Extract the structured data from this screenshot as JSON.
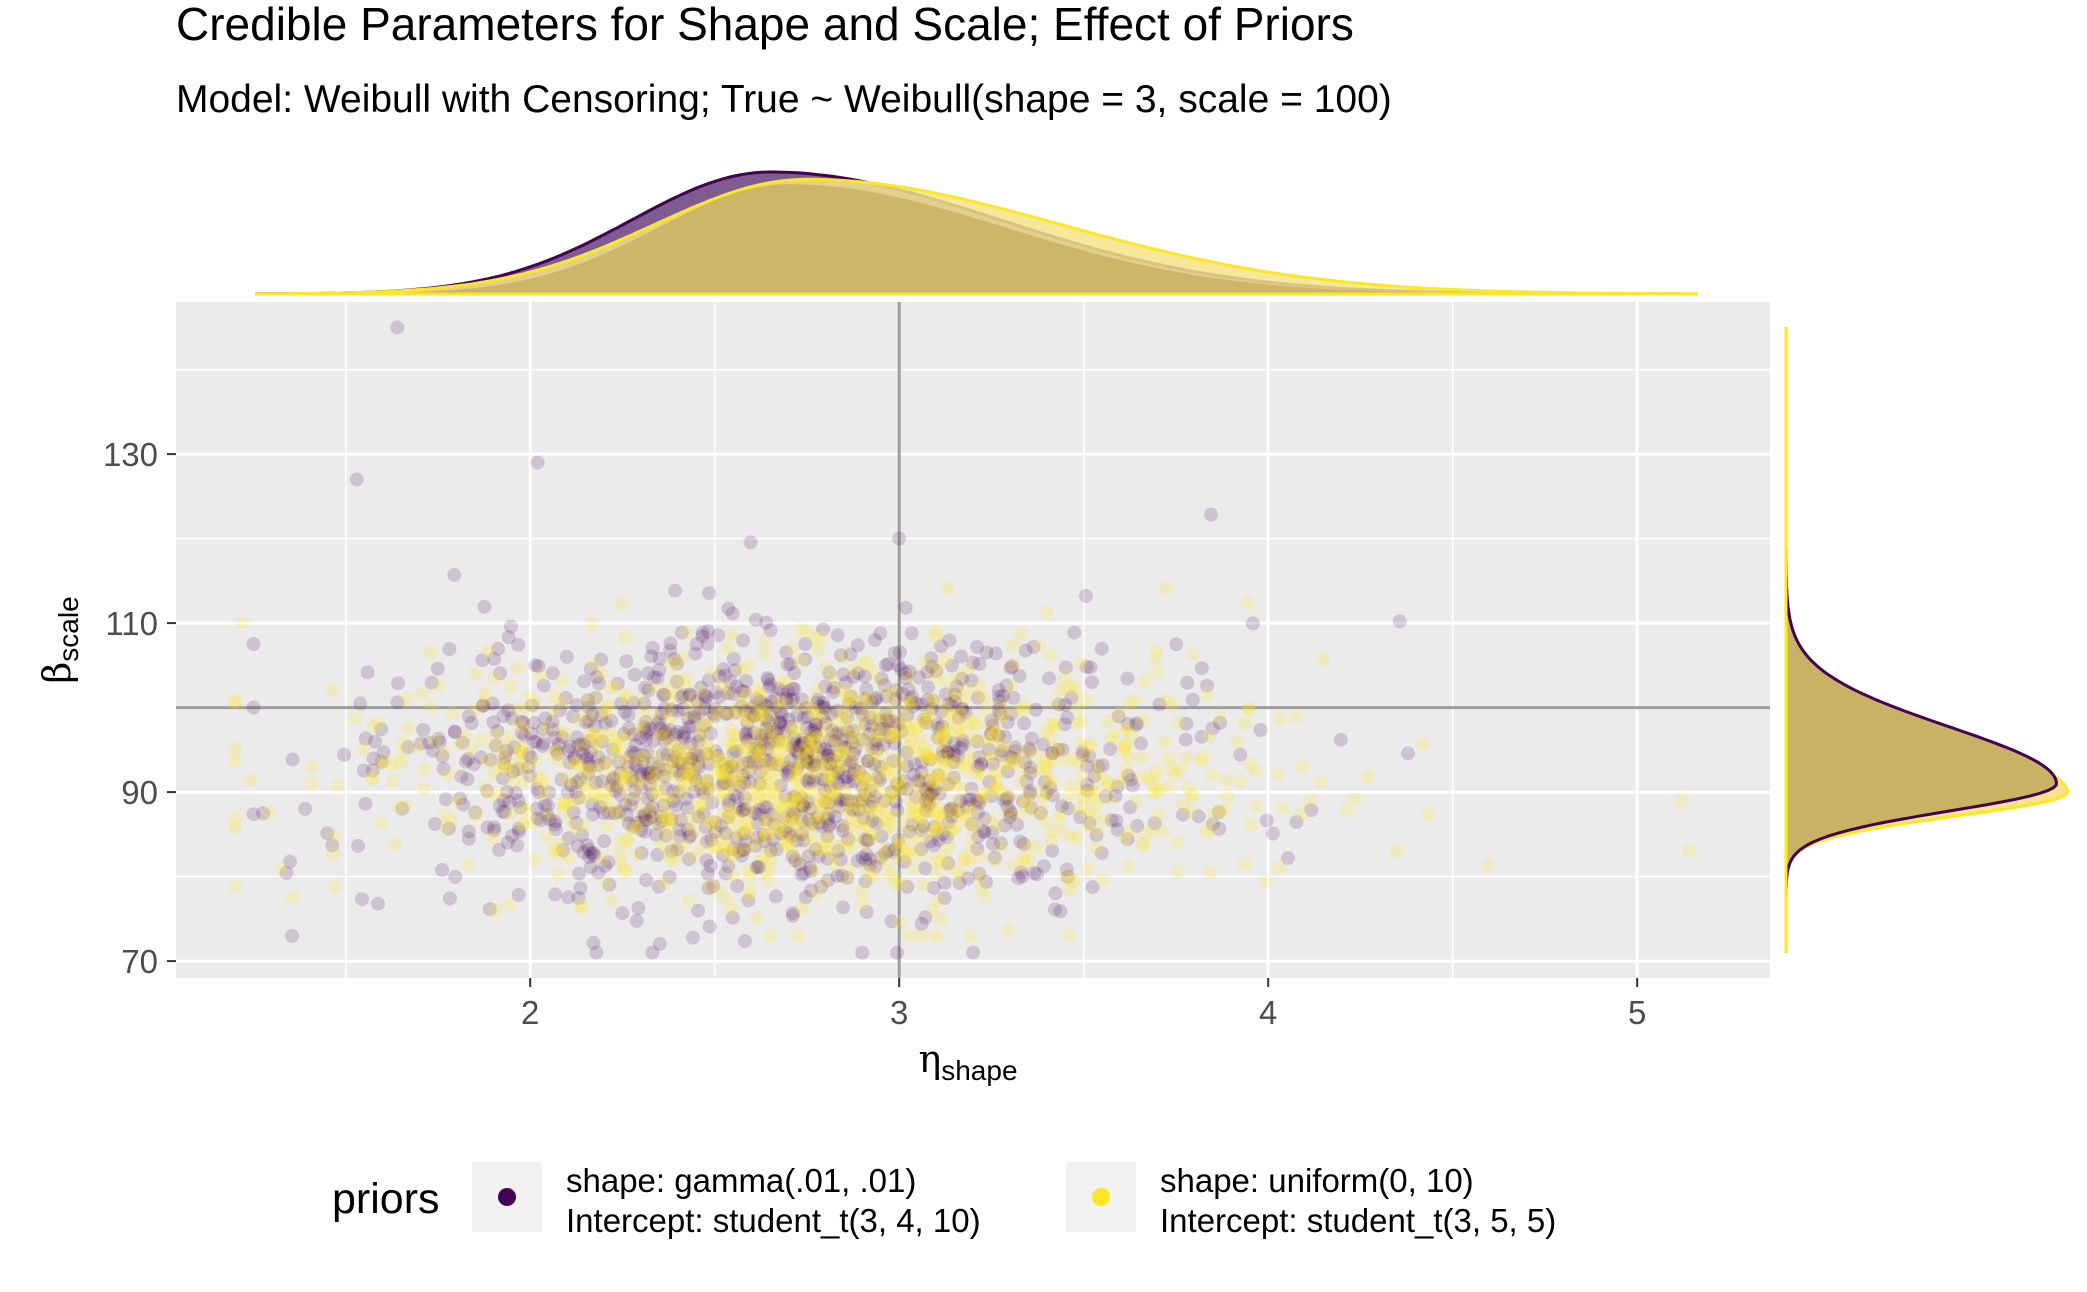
{
  "colors": {
    "gamma": "#440154",
    "uniform": "#FDE725",
    "overlap_fill": "#C9B264",
    "gamma_fill": "#7E5C8F",
    "uniform_fill": "#F5E48A",
    "panel_bg": "#EBEBEB",
    "grid": "#FFFFFF",
    "ref_line": "#9E9E9E",
    "axis_text": "#4D4D4D"
  },
  "chart_data": {
    "type": "scatter",
    "title": "Credible Parameters for Shape and Scale; Effect of Priors",
    "subtitle": "Model: Weibull with Censoring; True ~ Weibull(shape = 3, scale = 100)",
    "xlabel_main": "η",
    "xlabel_sub": "shape",
    "ylabel_main": "β",
    "ylabel_sub": "scale",
    "xlim": [
      1.04,
      5.36
    ],
    "ylim": [
      68.0,
      148.0
    ],
    "x_ticks": [
      2,
      3,
      4,
      5
    ],
    "x_tick_labels": [
      "2",
      "3",
      "4",
      "5"
    ],
    "y_ticks": [
      70,
      90,
      110,
      130
    ],
    "y_tick_labels": [
      "70",
      "90",
      "110",
      "130"
    ],
    "reference_lines": {
      "x": 3,
      "y": 100
    },
    "grid": true,
    "legend": {
      "position": "bottom",
      "title": "priors",
      "entries": [
        {
          "key": "gamma",
          "line1": "shape: gamma(.01, .01)",
          "line2": "Intercept: student_t(3, 4, 10)"
        },
        {
          "key": "uniform",
          "line1": "shape: uniform(0, 10)",
          "line2": "Intercept: student_t(3, 5, 5)"
        }
      ]
    },
    "series": [
      {
        "key": "gamma",
        "name": "shape: gamma(.01, .01)",
        "n_draws": 2000,
        "shape_mean": 2.68,
        "shape_sd": 0.5,
        "shape_range": [
          1.25,
          4.6
        ],
        "scale_mean": 93,
        "scale_sd": 8,
        "scale_range": [
          71,
          145
        ],
        "marginal_x_mode": 2.65,
        "marginal_y_mode": 91,
        "notable_points": [
          {
            "x": 1.64,
            "y": 145
          },
          {
            "x": 2.02,
            "y": 129
          },
          {
            "x": 1.53,
            "y": 127
          },
          {
            "x": 3.0,
            "y": 120
          },
          {
            "x": 2.9,
            "y": 71
          }
        ]
      },
      {
        "key": "uniform",
        "name": "shape: uniform(0, 10)",
        "n_draws": 2000,
        "shape_mean": 2.8,
        "shape_sd": 0.55,
        "shape_range": [
          1.2,
          5.15
        ],
        "scale_mean": 92,
        "scale_sd": 7,
        "scale_range": [
          73,
          130
        ],
        "marginal_x_mode": 2.75,
        "marginal_y_mode": 90,
        "notable_points": [
          {
            "x": 5.14,
            "y": 83
          },
          {
            "x": 5.12,
            "y": 89
          },
          {
            "x": 1.22,
            "y": 110
          }
        ]
      }
    ]
  }
}
